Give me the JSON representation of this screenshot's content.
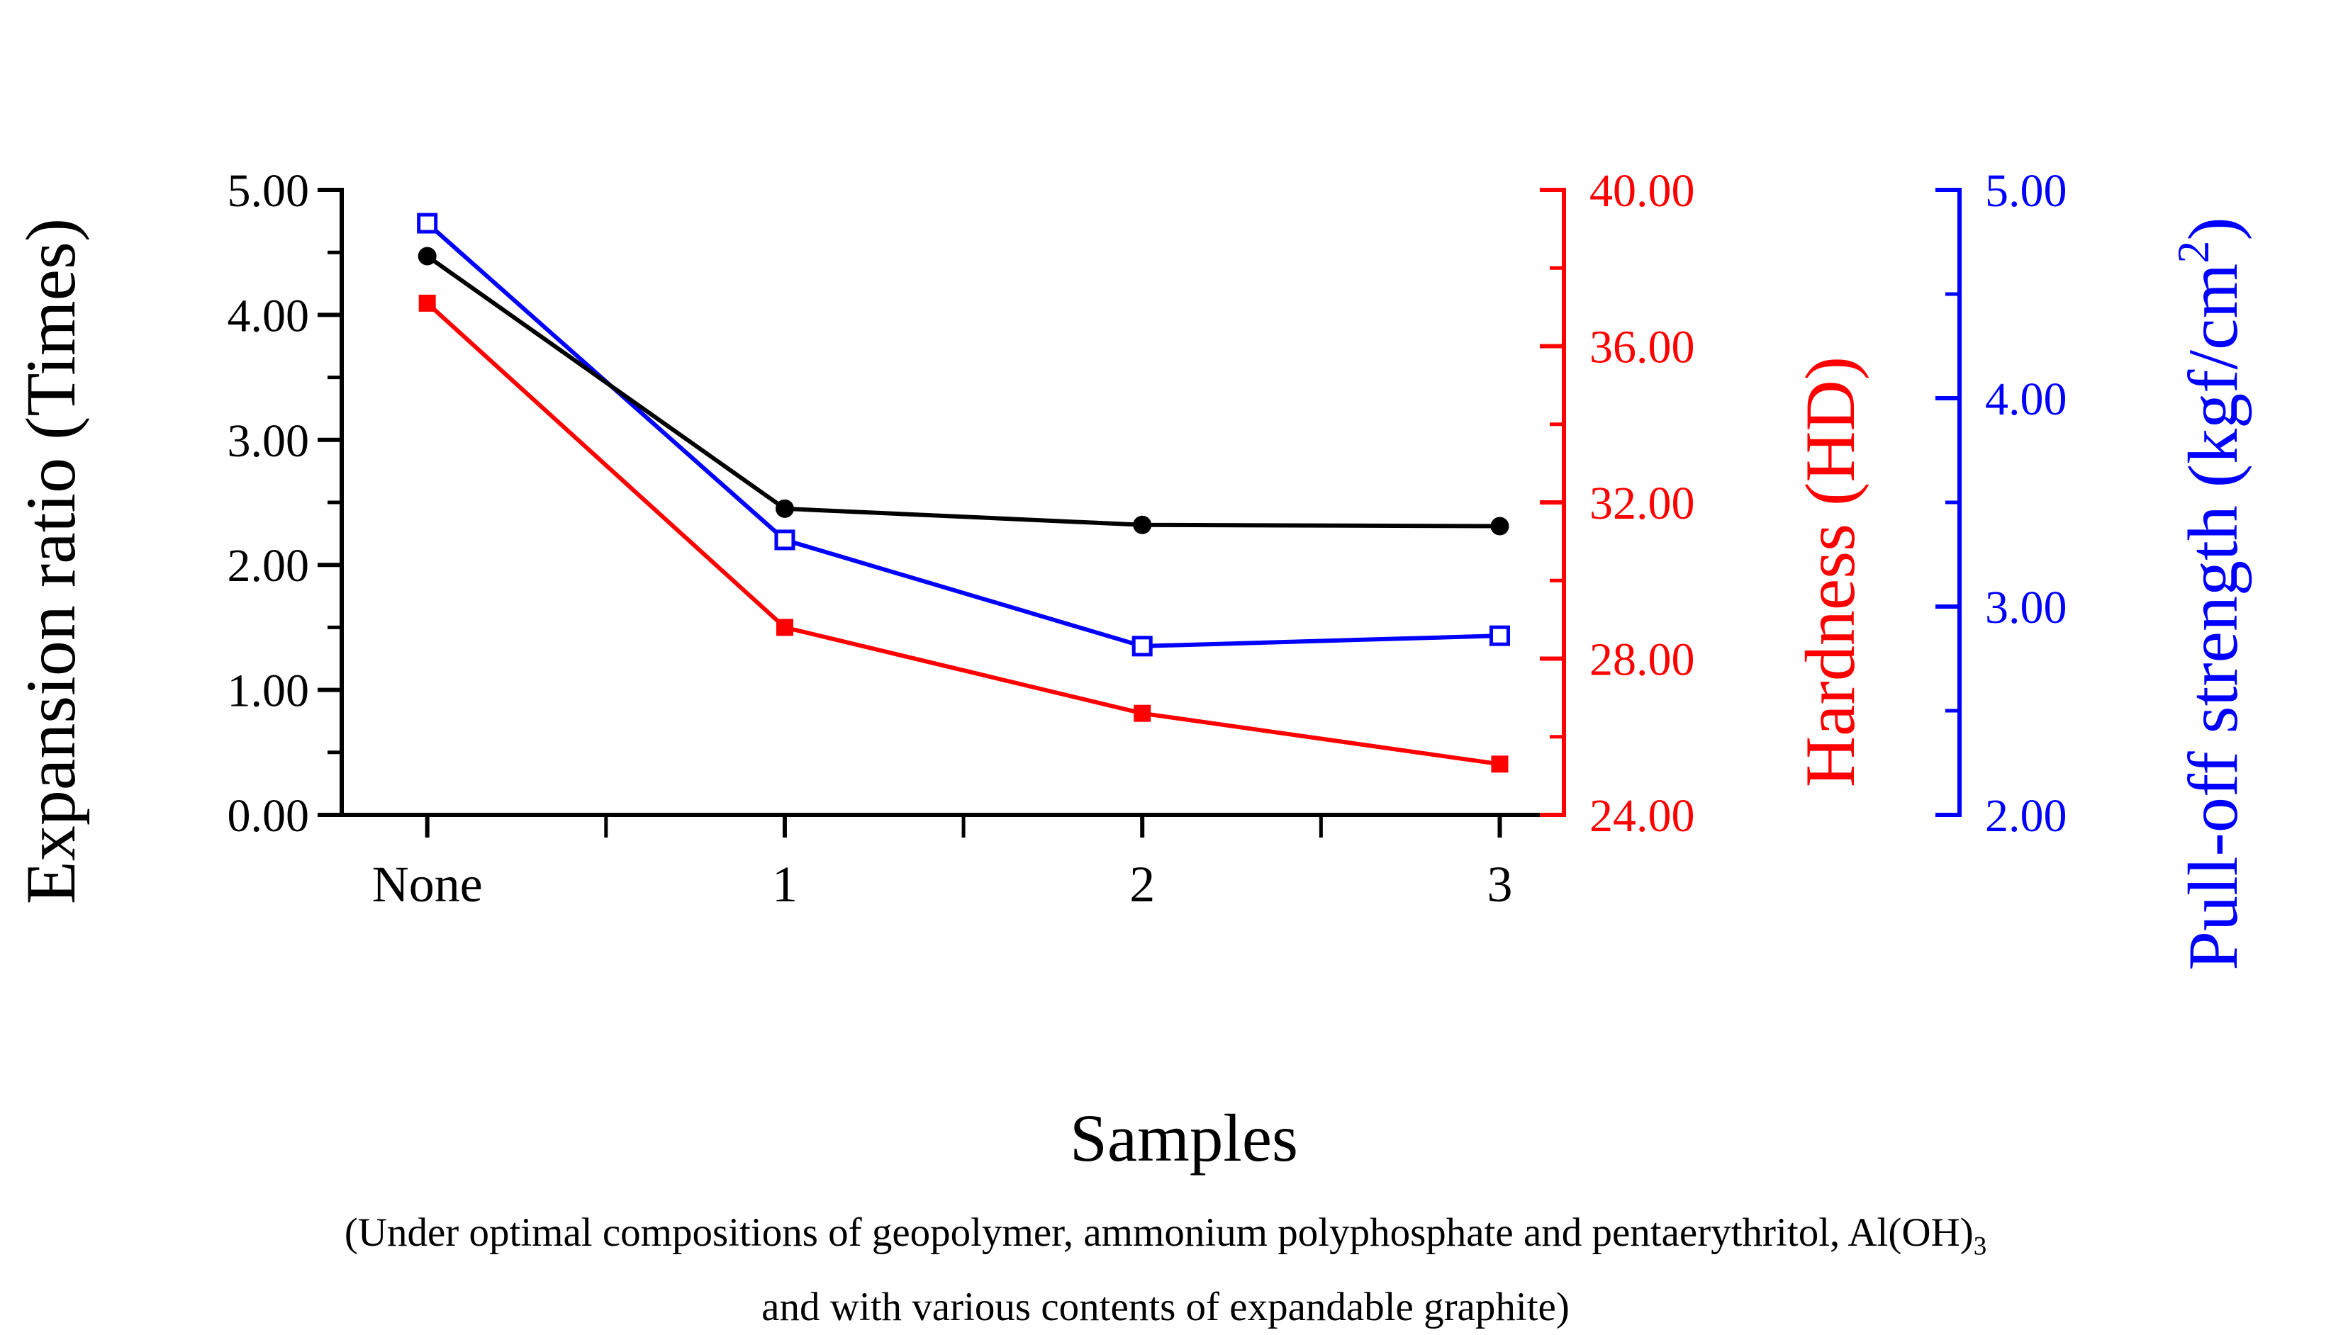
{
  "chart_data": {
    "type": "line",
    "categories": [
      "None",
      "1",
      "2",
      "3"
    ],
    "xlabel": "Samples",
    "axes": {
      "left": {
        "label": "Expansion ratio (Times)",
        "color": "#000000",
        "min": 0,
        "max": 5,
        "major_step": 1,
        "minor_step": 0.5,
        "tick_labels": [
          "0.00",
          "1.00",
          "2.00",
          "3.00",
          "4.00",
          "5.00"
        ]
      },
      "right1": {
        "label": "Hardness (HD)",
        "color": "#ff0000",
        "min": 24,
        "max": 40,
        "major_step": 4,
        "minor_step": 2,
        "tick_labels": [
          "24.00",
          "28.00",
          "32.00",
          "36.00",
          "40.00"
        ]
      },
      "right2": {
        "label_prefix": "Pull-off strength (kgf/cm",
        "label_superscript": "2",
        "label_suffix": ")",
        "color": "#0000ff",
        "min": 2,
        "max": 5,
        "major_step": 1,
        "minor_step": 0.5,
        "tick_labels": [
          "2.00",
          "3.00",
          "4.00",
          "5.00"
        ]
      }
    },
    "series": [
      {
        "name": "Hardness (HD)",
        "axis": "right1",
        "color": "#ff0000",
        "marker": "square-filled",
        "values": [
          37.1,
          28.8,
          26.6,
          25.3
        ]
      },
      {
        "name": "Pull-off strength (kgf/cm2)",
        "axis": "right2",
        "color": "#0000ff",
        "marker": "square-open",
        "values": [
          4.84,
          3.32,
          2.81,
          2.86
        ]
      },
      {
        "name": "Expansion ratio (Times)",
        "axis": "left",
        "color": "#000000",
        "marker": "circle-filled",
        "values": [
          4.47,
          2.45,
          2.32,
          2.31
        ]
      }
    ],
    "grid": false,
    "legend": "none"
  },
  "caption": {
    "line1_text": "(Under optimal compositions of geopolymer, ammonium polyphosphate and pentaerythritol, Al(OH)",
    "line1_subscript": "3",
    "line2_text": "and with various contents of expandable graphite)"
  }
}
